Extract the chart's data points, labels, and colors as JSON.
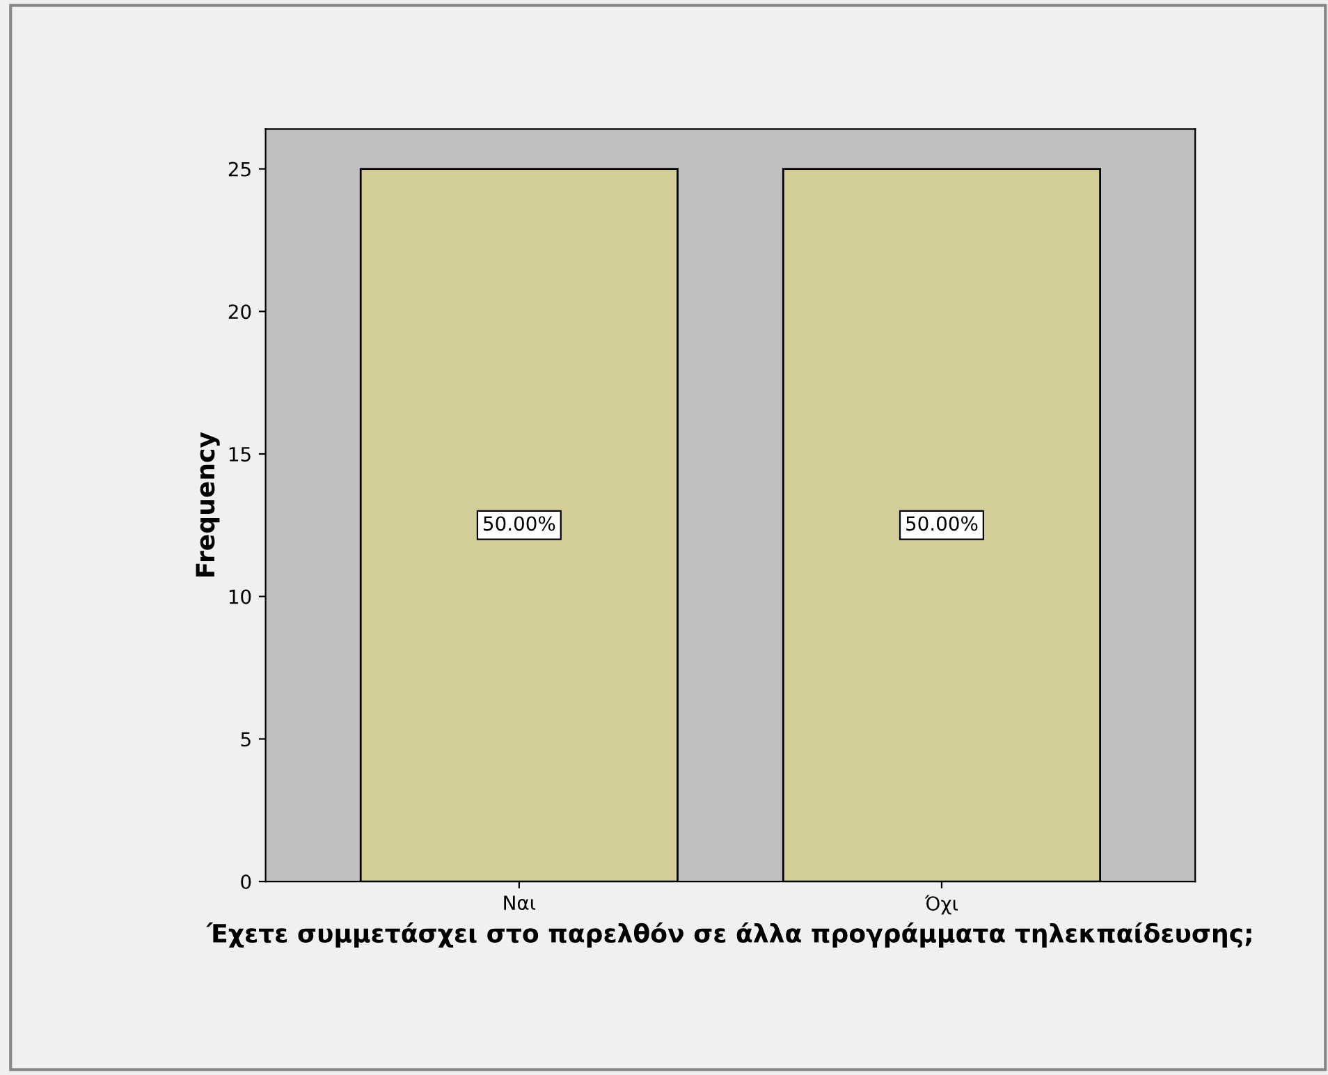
{
  "chart_data": {
    "type": "bar",
    "xlabel": "Έχετε συμμετάσχει στο παρελθόν σε άλλα προγράμματα τηλεκπαίδευσης;",
    "ylabel": "Frequency",
    "categories": [
      "Ναι",
      "Όχι"
    ],
    "values": [
      25,
      25
    ],
    "annotations": [
      "50.00%",
      "50.00%"
    ],
    "color": "#d3ce98",
    "ylim": [
      0,
      26.4
    ],
    "yticks": [
      0,
      5,
      10,
      15,
      20,
      25
    ],
    "grid": false
  }
}
